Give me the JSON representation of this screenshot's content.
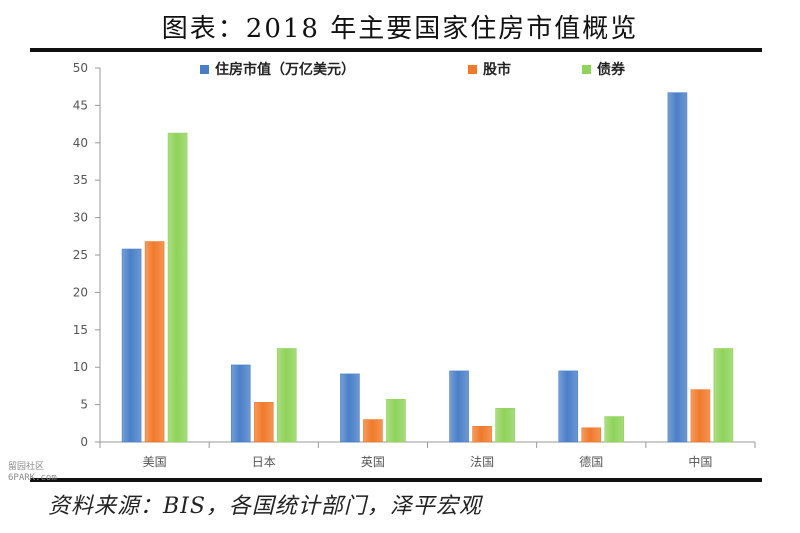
{
  "title": "图表：2018 年主要国家住房市值概览",
  "source": "资料来源：BIS，各国统计部门，泽平宏观",
  "watermark": [
    "留园社区",
    "6PARK.com"
  ],
  "colors": {
    "series": [
      "#4a7fc8",
      "#f07a2a",
      "#8fd35a"
    ],
    "axis": "#999999",
    "text": "#222222"
  },
  "chart_data": {
    "type": "bar",
    "categories": [
      "美国",
      "日本",
      "英国",
      "法国",
      "德国",
      "中国"
    ],
    "series": [
      {
        "name": "住房市值（万亿美元）",
        "values": [
          25.8,
          10.3,
          9.1,
          9.5,
          9.5,
          46.7
        ]
      },
      {
        "name": "股市",
        "values": [
          26.8,
          5.3,
          3.0,
          2.1,
          1.9,
          7.0
        ]
      },
      {
        "name": "债券",
        "values": [
          41.3,
          12.5,
          5.7,
          4.5,
          3.4,
          12.5
        ]
      }
    ],
    "yticks": [
      0,
      5,
      10,
      15,
      20,
      25,
      30,
      35,
      40,
      45,
      50
    ],
    "ylim": [
      0,
      50
    ],
    "legend_position": "top",
    "grid": false
  }
}
